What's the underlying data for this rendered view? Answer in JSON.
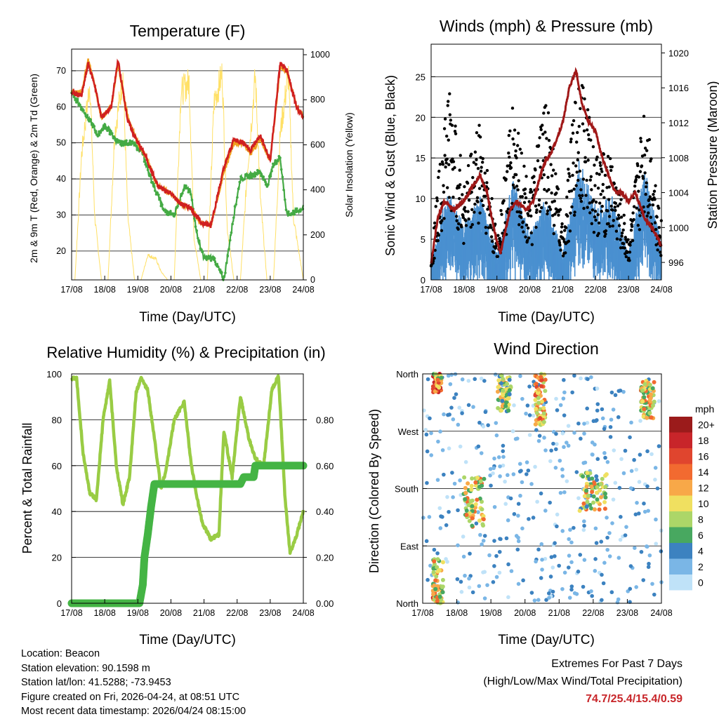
{
  "temperature": {
    "title": "Temperature (F)",
    "ylabel_left": "2m & 9m T (Red, Orange) & 2m Td (Green)",
    "ylabel_right": "Solar Insolation (Yellow)",
    "xlabel": "Time (Day/UTC)",
    "left_ticks": [
      "20",
      "30",
      "40",
      "50",
      "60",
      "70"
    ],
    "right_ticks": [
      "0",
      "200",
      "400",
      "600",
      "800",
      "1000"
    ],
    "colors": {
      "t2m": "#d02020",
      "t9m": "#f0a020",
      "td": "#44aa44",
      "solar": "#ffe066"
    }
  },
  "winds": {
    "title": "Winds (mph) & Pressure (mb)",
    "ylabel_left": "Sonic Wind & Gust (Blue, Black)",
    "ylabel_right": "Station Pressure (Maroon)",
    "xlabel": "Time (Day/UTC)",
    "left_ticks": [
      "0",
      "5",
      "10",
      "15",
      "20",
      "25"
    ],
    "right_ticks": [
      "996",
      "1000",
      "1004",
      "1008",
      "1012",
      "1016",
      "1020"
    ],
    "colors": {
      "wind": "#4a90d0",
      "gust": "#000000",
      "pressure": "#a01818"
    }
  },
  "humidity": {
    "title": "Relative Humidity (%) & Precipitation (in)",
    "ylabel_left": "Percent & Total Rainfall",
    "xlabel": "Time (Day/UTC)",
    "left_ticks": [
      "0",
      "20",
      "40",
      "60",
      "80",
      "100"
    ],
    "right_ticks": [
      "0.00",
      "0.20",
      "0.40",
      "0.60",
      "0.80"
    ],
    "colors": {
      "rh": "#99cc44",
      "precip": "#44b444"
    }
  },
  "direction": {
    "title": "Wind Direction",
    "ylabel_left": "Direction (Colored By Speed)",
    "xlabel": "Time (Day/UTC)",
    "left_ticks": [
      "North",
      "East",
      "South",
      "West",
      "North"
    ],
    "legend_unit": "mph",
    "legend_labels": [
      "20+",
      "18",
      "16",
      "14",
      "12",
      "10",
      "8",
      "6",
      "4",
      "2",
      "0"
    ],
    "legend_colors": [
      "#9b1b1b",
      "#c8252a",
      "#e0452e",
      "#f26a30",
      "#f8a848",
      "#f0e060",
      "#acd668",
      "#48a860",
      "#3c82c0",
      "#7ab6e6",
      "#bfe2f8"
    ]
  },
  "x_tick_labels": [
    "17/08",
    "18/08",
    "19/08",
    "20/08",
    "21/08",
    "22/08",
    "23/08",
    "24/08"
  ],
  "station_info": {
    "location": "Location: Beacon",
    "elevation": "Station elevation: 90.1598 m",
    "latlon": "Station lat/lon: 41.5288; -73.9453",
    "created": "Figure created on Fri, 2026-04-24, at 08:51 UTC",
    "recent": "Most recent data timestamp: 2026/04/24 08:15:00"
  },
  "extremes": {
    "title": "Extremes For Past 7 Days",
    "subtitle": "(High/Low/Max Wind/Total Precipitation)",
    "values": "74.7/25.4/15.4/0.59"
  },
  "chart_data": [
    {
      "type": "line",
      "title": "Temperature (F)",
      "xlabel": "Time (Day/UTC)",
      "ylabel": "2m & 9m T (Red, Orange) & 2m Td (Green)",
      "y2label": "Solar Insolation (Yellow)",
      "xlim": [
        0,
        7
      ],
      "ylim": [
        12,
        76
      ],
      "y2lim": [
        0,
        1000
      ],
      "series": [
        {
          "name": "2m T",
          "axis": "left",
          "x": [
            0,
            0.3,
            0.5,
            0.7,
            0.9,
            1.2,
            1.4,
            1.7,
            2.0,
            2.2,
            2.6,
            3.0,
            3.3,
            3.6,
            3.9,
            4.2,
            4.6,
            4.9,
            5.2,
            5.4,
            5.7,
            6.0,
            6.3,
            6.5,
            6.8,
            7.0
          ],
          "y": [
            64,
            63,
            72,
            66,
            57,
            60,
            73,
            56,
            50,
            47,
            38,
            36,
            33,
            32,
            28,
            27,
            43,
            51,
            50,
            48,
            52,
            45,
            72,
            70,
            60,
            57
          ]
        },
        {
          "name": "9m T",
          "axis": "left",
          "x": [
            0,
            0.3,
            0.5,
            0.7,
            0.9,
            1.2,
            1.4,
            1.7,
            2.0,
            2.2,
            2.6,
            3.0,
            3.3,
            3.6,
            3.9,
            4.2,
            4.6,
            4.9,
            5.2,
            5.4,
            5.7,
            6.0,
            6.3,
            6.5,
            6.8,
            7.0
          ],
          "y": [
            64,
            64,
            73,
            66,
            57,
            60,
            72,
            57,
            50,
            47,
            38,
            36,
            33,
            32,
            28,
            27,
            42,
            50,
            50,
            47,
            51,
            45,
            71,
            70,
            60,
            57
          ]
        },
        {
          "name": "2m Td",
          "axis": "left",
          "x": [
            0,
            0.5,
            0.8,
            1.0,
            1.4,
            1.8,
            2.1,
            2.4,
            2.8,
            3.1,
            3.4,
            3.6,
            3.8,
            4.0,
            4.3,
            4.6,
            4.9,
            5.1,
            5.4,
            5.7,
            5.9,
            6.1,
            6.3,
            6.5,
            6.8,
            7.0
          ],
          "y": [
            64,
            57,
            52,
            55,
            50,
            50,
            48,
            40,
            31,
            30,
            38,
            36,
            24,
            18,
            18,
            12,
            30,
            40,
            41,
            42,
            38,
            44,
            46,
            30,
            31,
            32
          ]
        },
        {
          "name": "Solar Insolation",
          "axis": "right",
          "x": [
            0,
            0.1,
            0.3,
            0.55,
            0.7,
            0.9,
            1.1,
            1.3,
            1.55,
            1.7,
            1.9,
            2.1,
            2.3,
            2.55,
            2.7,
            2.9,
            3.1,
            3.3,
            3.55,
            3.7,
            3.9,
            4.1,
            4.3,
            4.55,
            4.7,
            4.9,
            5.1,
            5.3,
            5.55,
            5.7,
            5.9,
            6.1,
            6.3,
            6.55,
            6.7,
            7.0
          ],
          "y": [
            0,
            0,
            600,
            950,
            300,
            0,
            0,
            700,
            980,
            300,
            0,
            0,
            120,
            100,
            40,
            0,
            0,
            900,
            950,
            200,
            0,
            0,
            850,
            990,
            250,
            0,
            0,
            500,
            980,
            400,
            0,
            0,
            700,
            990,
            300,
            0
          ]
        }
      ]
    },
    {
      "type": "scatter",
      "title": "Winds (mph) & Pressure (mb)",
      "xlabel": "Time (Day/UTC)",
      "ylabel": "Sonic Wind & Gust (Blue, Black)",
      "y2label": "Station Pressure (Maroon)",
      "xlim": [
        0,
        7
      ],
      "ylim": [
        0,
        29
      ],
      "y2lim": [
        994,
        1021
      ],
      "series": [
        {
          "name": "Station Pressure",
          "axis": "right",
          "type": "line",
          "x": [
            0,
            0.2,
            0.4,
            0.7,
            1.0,
            1.3,
            1.5,
            1.7,
            1.9,
            2.1,
            2.4,
            2.6,
            2.9,
            3.1,
            3.4,
            3.7,
            4.0,
            4.2,
            4.4,
            4.6,
            4.8,
            5.0,
            5.2,
            5.4,
            5.6,
            5.8,
            6.0,
            6.2,
            6.5,
            6.7,
            7.0
          ],
          "y": [
            996,
            1001,
            1003,
            1002,
            1003,
            1005,
            1006,
            1004,
            1000,
            997,
            1002,
            1003,
            1002,
            1003,
            1007,
            1009,
            1012,
            1016,
            1018,
            1014,
            1012,
            1011,
            1008,
            1006,
            1004,
            1004,
            1003,
            1004,
            1001,
            1000,
            998
          ]
        },
        {
          "name": "Sonic Wind (envelope)",
          "axis": "left",
          "x": [
            0,
            0.5,
            1.0,
            1.5,
            2.0,
            2.5,
            3.0,
            3.5,
            4.0,
            4.5,
            5.0,
            5.5,
            6.0,
            6.5,
            7.0
          ],
          "y": [
            2,
            10,
            6,
            9,
            3,
            11,
            5,
            9,
            3,
            13,
            8,
            9,
            3,
            12,
            4
          ]
        },
        {
          "name": "Gust (envelope)",
          "axis": "left",
          "x": [
            0,
            0.5,
            1.0,
            1.5,
            2.0,
            2.5,
            3.0,
            3.5,
            4.0,
            4.5,
            5.0,
            5.5,
            6.0,
            6.5,
            7.0
          ],
          "y": [
            3,
            24,
            12,
            20,
            5,
            22,
            10,
            23,
            6,
            27,
            15,
            15,
            5,
            22,
            7
          ]
        }
      ]
    },
    {
      "type": "line",
      "title": "Relative Humidity (%) & Precipitation (in)",
      "xlabel": "Time (Day/UTC)",
      "ylabel": "Percent & Total Rainfall",
      "xlim": [
        0,
        7
      ],
      "ylim": [
        0,
        100
      ],
      "y2lim": [
        0,
        1.0
      ],
      "series": [
        {
          "name": "Relative Humidity",
          "axis": "left",
          "x": [
            0,
            0.15,
            0.35,
            0.55,
            0.75,
            0.95,
            1.15,
            1.35,
            1.55,
            1.75,
            1.95,
            2.1,
            2.3,
            2.5,
            2.7,
            2.85,
            3.1,
            3.4,
            3.6,
            3.8,
            3.95,
            4.2,
            4.45,
            4.6,
            4.85,
            5.1,
            5.35,
            5.55,
            5.8,
            6.05,
            6.25,
            6.45,
            6.6,
            6.8,
            7.0
          ],
          "y": [
            98,
            98,
            65,
            48,
            45,
            80,
            97,
            60,
            43,
            55,
            92,
            98,
            93,
            72,
            50,
            58,
            80,
            88,
            62,
            45,
            35,
            28,
            30,
            75,
            55,
            90,
            72,
            63,
            60,
            93,
            99,
            45,
            22,
            30,
            40
          ]
        },
        {
          "name": "Total Precipitation",
          "axis": "right",
          "x": [
            0,
            2.05,
            2.15,
            2.2,
            2.3,
            2.4,
            2.5,
            4.8,
            5.1,
            5.2,
            5.5,
            5.55,
            7.0
          ],
          "y": [
            0.0,
            0.0,
            0.08,
            0.2,
            0.3,
            0.42,
            0.52,
            0.52,
            0.52,
            0.55,
            0.55,
            0.6,
            0.6
          ]
        }
      ]
    },
    {
      "type": "scatter",
      "title": "Wind Direction",
      "xlabel": "Time (Day/UTC)",
      "ylabel": "Direction (Colored By Speed)",
      "xlim": [
        0,
        7
      ],
      "ylim": [
        0,
        360
      ],
      "categories_y": [
        "North",
        "East",
        "South",
        "West",
        "North"
      ],
      "legend_title": "mph",
      "legend": [
        "20+",
        "18",
        "16",
        "14",
        "12",
        "10",
        "8",
        "6",
        "4",
        "2",
        "0"
      ],
      "clusters": [
        {
          "x_start": 0.3,
          "x_end": 0.55,
          "dir_center": 350,
          "dir_spread": 20,
          "speed": 14
        },
        {
          "x_start": 0.3,
          "x_end": 0.6,
          "dir_center": 30,
          "dir_spread": 40,
          "speed": 10
        },
        {
          "x_start": 1.2,
          "x_end": 1.8,
          "dir_center": 160,
          "dir_spread": 40,
          "speed": 10
        },
        {
          "x_start": 2.2,
          "x_end": 2.6,
          "dir_center": 330,
          "dir_spread": 30,
          "speed": 8
        },
        {
          "x_start": 3.3,
          "x_end": 3.6,
          "dir_center": 320,
          "dir_spread": 40,
          "speed": 12
        },
        {
          "x_start": 4.6,
          "x_end": 5.4,
          "dir_center": 175,
          "dir_spread": 30,
          "speed": 9
        },
        {
          "x_start": 6.4,
          "x_end": 6.8,
          "dir_center": 320,
          "dir_spread": 30,
          "speed": 10
        }
      ]
    }
  ]
}
